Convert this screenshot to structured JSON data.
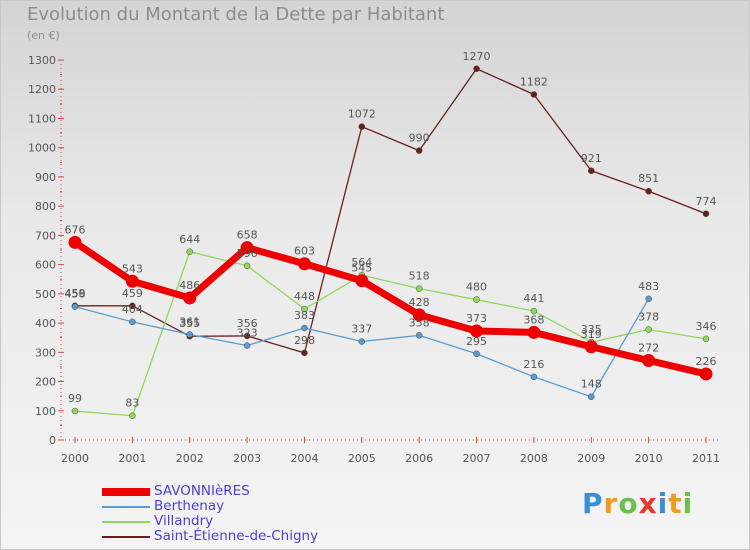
{
  "header": {
    "title": "Evolution du Montant de la Dette par Habitant",
    "subtitle": "(en €)"
  },
  "logo": {
    "text": "Proxiti",
    "letter_colors": [
      "#3a8ed6",
      "#f29a1e",
      "#6cc04a",
      "#e33a2c",
      "#3a8ed6",
      "#f29a1e",
      "#6cc04a"
    ]
  },
  "chart_data": {
    "type": "line",
    "title": "Evolution du Montant de la Dette par Habitant",
    "subtitle": "(en €)",
    "xlabel": "",
    "ylabel": "",
    "x": [
      "2000",
      "2001",
      "2002",
      "2003",
      "2004",
      "2005",
      "2006",
      "2007",
      "2008",
      "2009",
      "2010",
      "2011"
    ],
    "ylim": [
      0,
      1300
    ],
    "yticks": [
      0,
      100,
      200,
      300,
      400,
      500,
      600,
      700,
      800,
      900,
      1000,
      1100,
      1200,
      1300
    ],
    "grid": false,
    "legend": "bottom-left",
    "series": [
      {
        "name": "SAVONNIèRES",
        "color": "#ee0000",
        "values": [
          676,
          543,
          486,
          658,
          603,
          545,
          428,
          373,
          368,
          319,
          272,
          226
        ]
      },
      {
        "name": "Berthenay",
        "color": "#5a9bd0",
        "values": [
          456,
          404,
          361,
          323,
          383,
          337,
          358,
          295,
          216,
          148,
          483,
          null
        ]
      },
      {
        "name": "Villandry",
        "color": "#90d85a",
        "values": [
          99,
          83,
          644,
          596,
          448,
          564,
          518,
          480,
          441,
          335,
          378,
          346
        ]
      },
      {
        "name": "Saint-Étienne-de-Chigny",
        "color": "#6b1e1e",
        "values": [
          459,
          459,
          355,
          356,
          298,
          1072,
          990,
          1270,
          1182,
          921,
          851,
          774
        ]
      }
    ],
    "data_labels": [
      [
        "676",
        "543",
        "486",
        "658",
        "603",
        "545",
        "428",
        "373",
        "368",
        "319",
        "272",
        "226"
      ],
      [
        "456",
        "404",
        "361",
        "323",
        "383",
        "337",
        "358",
        "295",
        "216",
        "148",
        "483",
        ""
      ],
      [
        "99",
        "83",
        "644",
        "596",
        "448",
        "564",
        "518",
        "480",
        "441",
        "335",
        "378",
        "346"
      ],
      [
        "459",
        "459",
        "355",
        "356",
        "298",
        "1072",
        "990",
        "1270",
        "1182",
        "921",
        "851",
        "774"
      ]
    ]
  }
}
